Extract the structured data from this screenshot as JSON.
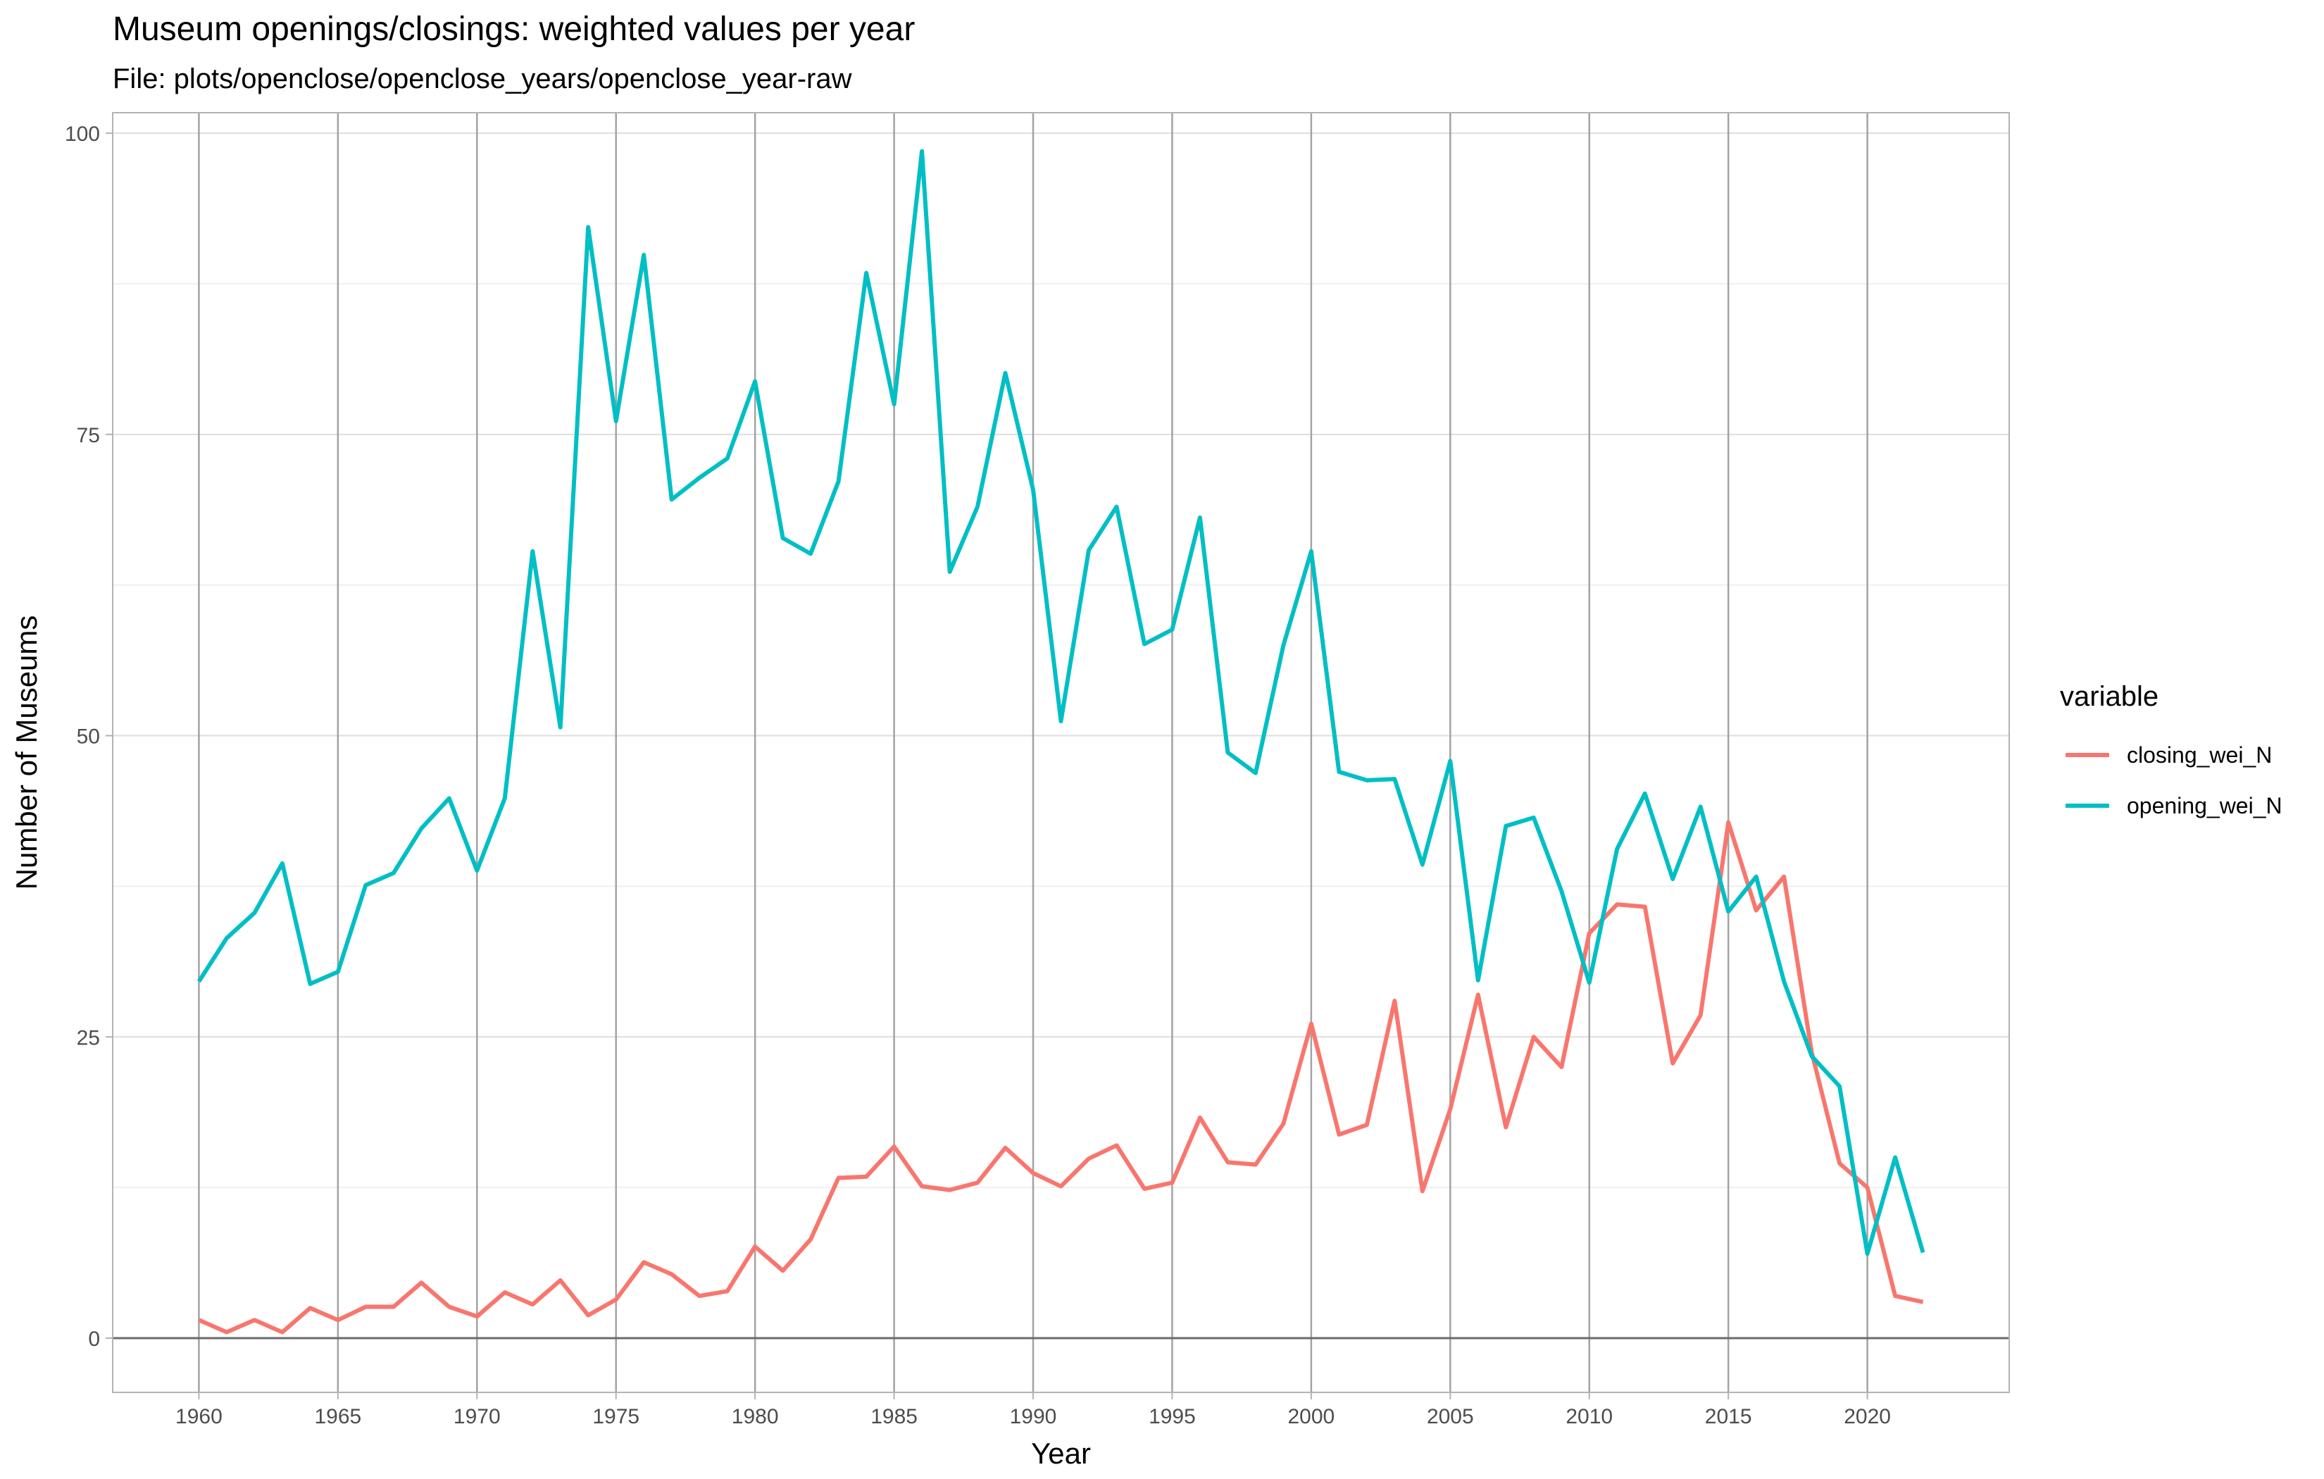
{
  "title": "Museum openings/closings: weighted values per year",
  "subtitle": "File: plots/openclose/openclose_years/openclose_year-raw",
  "chart_data": {
    "type": "line",
    "xlabel": "Year",
    "ylabel": "Number of Museums",
    "xlim": [
      1956.9,
      2025.1
    ],
    "ylim": [
      -4.5,
      101.7
    ],
    "x_ticks": [
      1960,
      1965,
      1970,
      1975,
      1980,
      1985,
      1990,
      1995,
      2000,
      2005,
      2010,
      2015,
      2020
    ],
    "x_tick_labels": [
      "1960",
      "1965",
      "1970",
      "1975",
      "1980",
      "1985",
      "1990",
      "1995",
      "2000",
      "2005",
      "2010",
      "2015",
      "2020"
    ],
    "y_ticks": [
      0,
      25,
      50,
      75,
      100
    ],
    "y_tick_labels": [
      "0",
      "25",
      "50",
      "75",
      "100"
    ],
    "grid": true,
    "legend_title": "variable",
    "legend_position": "right",
    "x": [
      1960,
      1961,
      1962,
      1963,
      1964,
      1965,
      1966,
      1967,
      1968,
      1969,
      1970,
      1971,
      1972,
      1973,
      1974,
      1975,
      1976,
      1977,
      1978,
      1979,
      1980,
      1981,
      1982,
      1983,
      1984,
      1985,
      1986,
      1987,
      1988,
      1989,
      1990,
      1991,
      1992,
      1993,
      1994,
      1995,
      1996,
      1997,
      1998,
      1999,
      2000,
      2001,
      2002,
      2003,
      2004,
      2005,
      2006,
      2007,
      2008,
      2009,
      2010,
      2011,
      2012,
      2013,
      2014,
      2015,
      2016,
      2017,
      2018,
      2019,
      2020,
      2021,
      2022
    ],
    "series": [
      {
        "name": "closing_wei_N",
        "color": "#F8766D",
        "values": [
          1.5,
          0.5,
          1.5,
          0.5,
          2.5,
          1.5,
          2.6,
          2.6,
          4.6,
          2.6,
          1.8,
          3.8,
          2.8,
          4.8,
          1.9,
          3.2,
          6.3,
          5.3,
          3.5,
          3.9,
          7.6,
          5.6,
          8.2,
          13.3,
          13.4,
          15.9,
          12.6,
          12.3,
          12.9,
          15.8,
          13.7,
          12.6,
          14.9,
          16,
          12.4,
          12.9,
          18.3,
          14.6,
          14.4,
          17.8,
          26.1,
          16.9,
          17.7,
          28,
          12.2,
          19,
          28.5,
          17.5,
          25,
          22.5,
          33.6,
          36,
          35.8,
          22.8,
          26.8,
          42.8,
          35.5,
          38.3,
          23.7,
          14.5,
          12.5,
          3.5,
          3
        ]
      },
      {
        "name": "opening_wei_N",
        "color": "#00BFC4",
        "values": [
          29.6,
          33.2,
          35.3,
          39.4,
          29.4,
          30.4,
          37.6,
          38.6,
          42.3,
          44.8,
          38.8,
          44.8,
          65.3,
          50.7,
          92.2,
          76.1,
          89.9,
          69.6,
          71.4,
          73,
          79.4,
          66.4,
          65.1,
          71.1,
          88.4,
          77.5,
          98.5,
          63.6,
          69,
          80.1,
          70.4,
          51.2,
          65.4,
          69,
          57.6,
          58.8,
          68.1,
          48.6,
          46.9,
          57.5,
          65.3,
          47,
          46.3,
          46.4,
          39.3,
          47.9,
          29.7,
          42.5,
          43.2,
          37.1,
          29.5,
          40.6,
          45.2,
          38.1,
          44.1,
          35.4,
          38.3,
          29.6,
          23.4,
          20.9,
          7,
          15,
          7.1
        ]
      }
    ]
  }
}
